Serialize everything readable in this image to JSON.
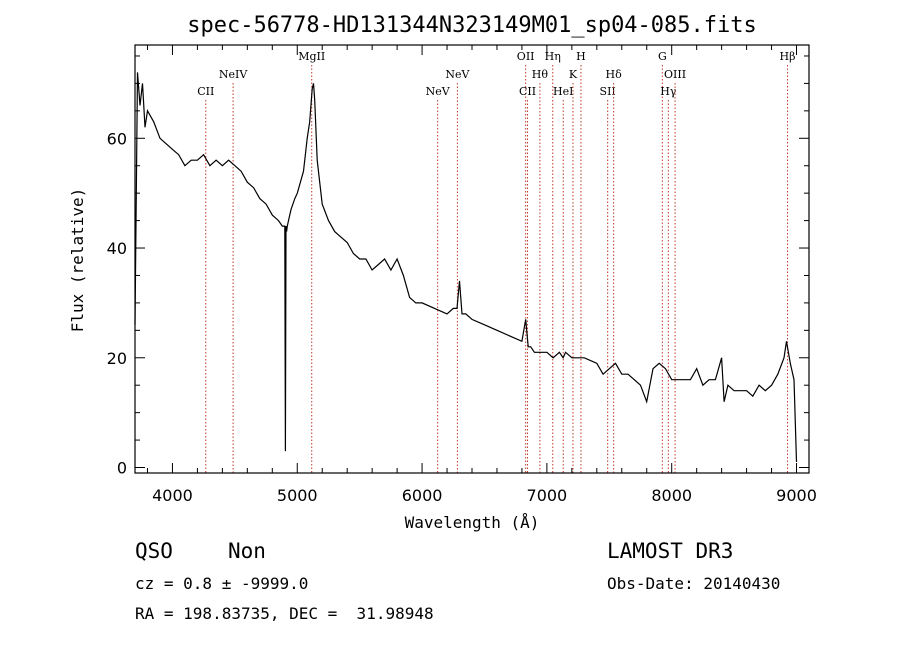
{
  "chart_data": {
    "type": "line",
    "title": "spec-56778-HD131344N323149M01_sp04-085.fits",
    "xlabel": "Wavelength (Å)",
    "ylabel": "Flux (relative)",
    "xlim": [
      3700,
      9100
    ],
    "ylim": [
      -1,
      77
    ],
    "x_ticks": [
      4000,
      5000,
      6000,
      7000,
      8000,
      9000
    ],
    "y_ticks": [
      0,
      20,
      40,
      60
    ],
    "grid": false,
    "series": [
      {
        "name": "spectrum",
        "x": [
          3700,
          3720,
          3740,
          3760,
          3780,
          3800,
          3850,
          3900,
          3950,
          4000,
          4050,
          4100,
          4150,
          4200,
          4250,
          4300,
          4350,
          4400,
          4450,
          4500,
          4550,
          4600,
          4650,
          4700,
          4750,
          4800,
          4850,
          4880,
          4900,
          4905,
          4910,
          4915,
          4920,
          4930,
          4950,
          4980,
          5000,
          5050,
          5080,
          5100,
          5120,
          5130,
          5140,
          5160,
          5200,
          5250,
          5300,
          5350,
          5400,
          5450,
          5500,
          5550,
          5600,
          5650,
          5700,
          5750,
          5800,
          5850,
          5900,
          5950,
          6000,
          6100,
          6200,
          6250,
          6280,
          6300,
          6320,
          6350,
          6400,
          6500,
          6600,
          6700,
          6800,
          6830,
          6850,
          6870,
          6900,
          7000,
          7050,
          7100,
          7130,
          7150,
          7200,
          7300,
          7400,
          7450,
          7500,
          7550,
          7600,
          7650,
          7700,
          7750,
          7800,
          7850,
          7900,
          7950,
          8000,
          8050,
          8100,
          8150,
          8200,
          8250,
          8300,
          8350,
          8400,
          8420,
          8450,
          8500,
          8550,
          8600,
          8650,
          8700,
          8750,
          8800,
          8850,
          8900,
          8920,
          8950,
          8980,
          9000
        ],
        "y": [
          26,
          72,
          66,
          70,
          62,
          65,
          63,
          60,
          59,
          58,
          57,
          55,
          56,
          56,
          57,
          55,
          56,
          55,
          56,
          55,
          54,
          52,
          51,
          49,
          48,
          46,
          45,
          44,
          44,
          3,
          44,
          43,
          44,
          45,
          47,
          49,
          50,
          54,
          60,
          63,
          69,
          70,
          67,
          56,
          48,
          45,
          43,
          42,
          41,
          39,
          38,
          38,
          36,
          37,
          38,
          36,
          38,
          35,
          31,
          30,
          30,
          29,
          28,
          29,
          29,
          34,
          28,
          28,
          27,
          26,
          25,
          24,
          23,
          27,
          22,
          22,
          21,
          21,
          20,
          21,
          20,
          21,
          20,
          20,
          19,
          17,
          18,
          19,
          17,
          17,
          16,
          15,
          12,
          18,
          19,
          18,
          16,
          16,
          16,
          16,
          18,
          15,
          16,
          16,
          20,
          12,
          15,
          14,
          14,
          14,
          13,
          15,
          14,
          15,
          17,
          20,
          23,
          19,
          16,
          1
        ]
      }
    ],
    "emission_lines": [
      {
        "label": "CII",
        "wavelength": 4267,
        "row": 1
      },
      {
        "label": "NeIV",
        "wavelength": 4486,
        "row": 0
      },
      {
        "label": "MgII",
        "wavelength": 5116,
        "row": -1
      },
      {
        "label": "NeV",
        "wavelength": 6125,
        "row": 1
      },
      {
        "label": "NeV",
        "wavelength": 6283,
        "row": 0
      },
      {
        "label": "OII",
        "wavelength": 6830,
        "row": -1
      },
      {
        "label": "CII",
        "wavelength": 6845,
        "row": 1
      },
      {
        "label": "Hθ",
        "wavelength": 6944,
        "row": 0
      },
      {
        "label": "Hη",
        "wavelength": 7047,
        "row": -1
      },
      {
        "label": "HeI",
        "wavelength": 7131,
        "row": 1
      },
      {
        "label": "K",
        "wavelength": 7209,
        "row": 0
      },
      {
        "label": "H",
        "wavelength": 7273,
        "row": -1
      },
      {
        "label": "SII",
        "wavelength": 7487,
        "row": 1
      },
      {
        "label": "Hδ",
        "wavelength": 7535,
        "row": 0
      },
      {
        "label": "G",
        "wavelength": 7925,
        "row": -1
      },
      {
        "label": "Hγ",
        "wavelength": 7973,
        "row": 1
      },
      {
        "label": "OIII",
        "wavelength": 8027,
        "row": 0
      },
      {
        "label": "Hβ",
        "wavelength": 8928,
        "row": -1
      }
    ]
  },
  "info": {
    "class": "QSO",
    "subclass": "Non",
    "survey": "LAMOST DR3",
    "cz": "cz = 0.8 ± -9999.0",
    "obs_date": "Obs-Date: 20140430",
    "radec": "RA = 198.83735, DEC =  31.98948"
  }
}
